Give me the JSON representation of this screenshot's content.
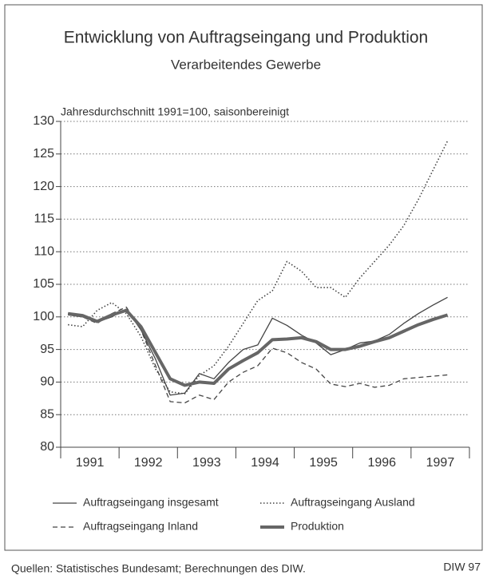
{
  "chart_data": {
    "type": "line",
    "title": "Entwicklung von Auftragseingang und Produktion",
    "subtitle": "Verarbeitendes Gewerbe",
    "y_label": "Jahresdurchschnitt 1991=100, saisonbereinigt",
    "categories": [
      "1991",
      "1992",
      "1993",
      "1994",
      "1995",
      "1996",
      "1997"
    ],
    "x": [
      1991.125,
      1991.375,
      1991.625,
      1991.875,
      1992.125,
      1992.375,
      1992.625,
      1992.875,
      1993.125,
      1993.375,
      1993.625,
      1993.875,
      1994.125,
      1994.375,
      1994.625,
      1994.875,
      1995.125,
      1995.375,
      1995.625,
      1995.875,
      1996.125,
      1996.375,
      1996.625,
      1996.875,
      1997.125,
      1997.375,
      1997.625
    ],
    "xlim": [
      1991,
      1998
    ],
    "xticks": [
      1991,
      1992,
      1993,
      1994,
      1995,
      1996,
      1997,
      1998
    ],
    "ylim": [
      80,
      130
    ],
    "yticks": [
      80,
      85,
      90,
      95,
      100,
      105,
      110,
      115,
      120,
      125,
      130
    ],
    "grid": true,
    "series": [
      {
        "name": "Auftragseingang insgesamt",
        "color": "#444444",
        "style": "solid",
        "width": 1.3,
        "values": [
          100.3,
          100,
          99.2,
          100,
          101.2,
          98,
          93.5,
          88,
          88.3,
          91.3,
          90.5,
          93,
          95,
          95.7,
          99.8,
          98.7,
          97.2,
          96,
          94.2,
          95,
          96,
          96.3,
          97.3,
          99,
          100.5,
          101.8,
          103
        ]
      },
      {
        "name": "Auftragseingang Ausland",
        "color": "#444444",
        "style": "dotted",
        "width": 1.6,
        "values": [
          98.8,
          98.5,
          101,
          102.2,
          100.5,
          97,
          92,
          88.5,
          88.2,
          91,
          92.5,
          95.5,
          99,
          102.5,
          104,
          108.5,
          107,
          104.5,
          104.5,
          103,
          106,
          108.5,
          111,
          114,
          118,
          122.5,
          127
        ]
      },
      {
        "name": "Auftragseingang Inland",
        "color": "#444444",
        "style": "dashed",
        "width": 1.3,
        "values": [
          100.5,
          100,
          99,
          100.5,
          101.5,
          98,
          92.5,
          87,
          86.8,
          88,
          87.3,
          90,
          91.5,
          92.5,
          95.2,
          94.5,
          93,
          92,
          89.7,
          89.3,
          89.8,
          89.2,
          89.5,
          90.5,
          90.7,
          90.9,
          91.1
        ]
      },
      {
        "name": "Produktion",
        "color": "#666666",
        "style": "solid",
        "width": 4,
        "values": [
          100.5,
          100.2,
          99.3,
          100.3,
          101,
          98.5,
          94.5,
          90.5,
          89.5,
          90,
          89.8,
          92,
          93.3,
          94.5,
          96.5,
          96.6,
          96.8,
          96.2,
          95,
          95,
          95.5,
          96.2,
          96.8,
          97.8,
          98.8,
          99.6,
          100.3
        ]
      }
    ],
    "source": "Quellen: Statistisches Bundesamt; Berechnungen des DIW.",
    "credit": "DIW 97"
  }
}
